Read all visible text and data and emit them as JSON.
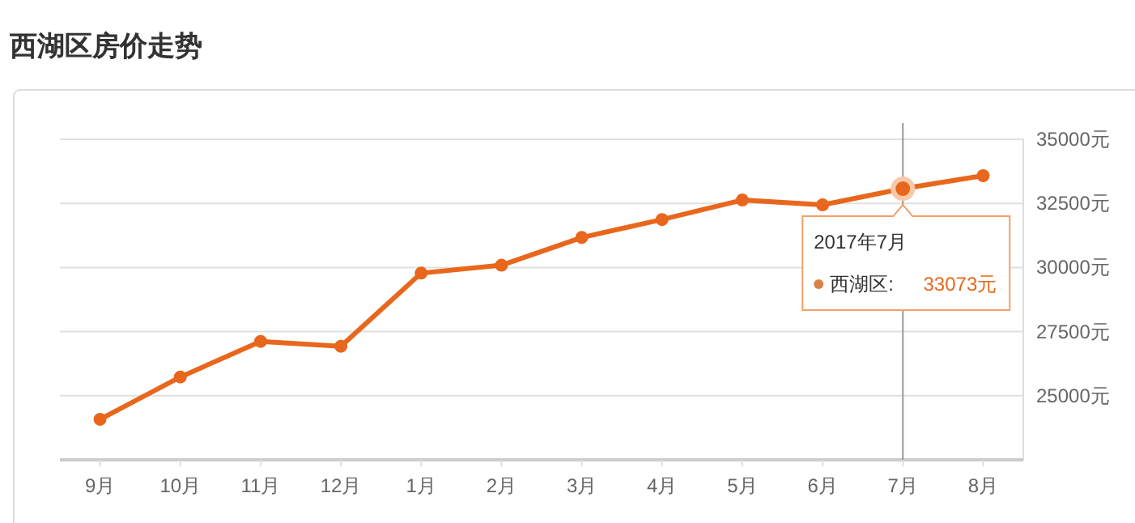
{
  "chart_data": {
    "type": "line",
    "title": "西湖区房价走势",
    "categories": [
      "9月",
      "10月",
      "11月",
      "12月",
      "1月",
      "2月",
      "3月",
      "4月",
      "5月",
      "6月",
      "7月",
      "8月"
    ],
    "series": [
      {
        "color": "#e8671c",
        "values": [
          24080,
          25730,
          27120,
          26930,
          29780,
          30090,
          31170,
          31870,
          32630,
          32440,
          33073,
          33580
        ]
      }
    ],
    "ylim": [
      22500,
      35000
    ],
    "yticks": [
      {
        "value": 22500,
        "label": null
      },
      {
        "value": 25000,
        "label": "25000元"
      },
      {
        "value": 27500,
        "label": "27500元"
      },
      {
        "value": 30000,
        "label": "30000元"
      },
      {
        "value": 32500,
        "label": "32500元"
      },
      {
        "value": 35000,
        "label": "35000元"
      }
    ],
    "grid": "y",
    "marker": "circle",
    "line_style": "solid",
    "ref_lines": [
      {
        "axis": "x",
        "value": "7月",
        "color": "#999999"
      }
    ],
    "annotations": [
      {
        "text": "2017年7月",
        "x": "7月",
        "y": 33073
      },
      "西湖区:",
      "33073元"
    ]
  }
}
